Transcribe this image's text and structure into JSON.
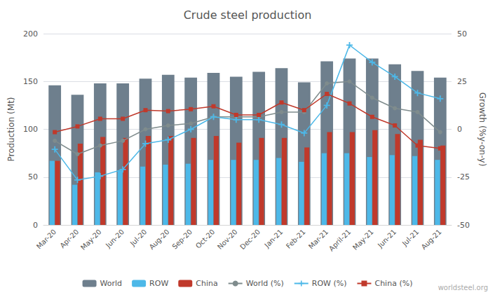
{
  "chart_data": {
    "type": "bar",
    "title": "Crude steel production",
    "categories": [
      "Mar-20",
      "Apr-20",
      "May-20",
      "Jun-20",
      "Jul-20",
      "Aug-20",
      "Sep-20",
      "Oct-20",
      "Nov-20",
      "Dec-20",
      "Jan-21",
      "Feb-21",
      "Mar-21",
      "April-21",
      "May-21",
      "Jun-21",
      "Jul-21",
      "Aug-21"
    ],
    "series": [
      {
        "name": "World",
        "type": "bar",
        "color": "#6e7f8d",
        "values": [
          146,
          136,
          148,
          148,
          153,
          157,
          154,
          159,
          155,
          160,
          164,
          149,
          171,
          174,
          174,
          168,
          161,
          154
        ]
      },
      {
        "name": "ROW",
        "type": "bar",
        "color": "#4db8e8",
        "values": [
          67,
          42,
          55,
          57,
          61,
          63,
          64,
          68,
          68,
          68,
          70,
          66,
          75,
          75,
          71,
          73,
          72,
          68
        ]
      },
      {
        "name": "China",
        "type": "bar",
        "color": "#c0392b",
        "values": [
          67,
          85,
          92,
          91,
          93,
          93,
          91,
          93,
          86,
          91,
          91,
          81,
          97,
          97,
          99,
          95,
          89,
          83
        ]
      },
      {
        "name": "World (%)",
        "type": "line",
        "axis": "y2",
        "marker": "circle",
        "color": "#7f8c8d",
        "values": [
          -6,
          -13,
          -8.5,
          -6,
          0,
          2,
          3,
          6.5,
          6.5,
          6.5,
          9,
          9,
          24,
          25,
          16.5,
          11,
          9,
          -1.5
        ]
      },
      {
        "name": "ROW (%)",
        "type": "line",
        "axis": "y2",
        "marker": "plus",
        "color": "#4db8e8",
        "values": [
          -10.5,
          -26.5,
          -24.5,
          -21,
          -7.5,
          -5.5,
          0,
          6.5,
          5,
          5,
          2.5,
          -2,
          12.5,
          44,
          35,
          27.5,
          19,
          16
        ]
      },
      {
        "name": "China (%)",
        "type": "line",
        "axis": "y2",
        "marker": "square",
        "color": "#c0392b",
        "values": [
          -1.5,
          1.5,
          5.5,
          5.5,
          10,
          9.5,
          10.5,
          12,
          7.5,
          7.5,
          14,
          10,
          18.5,
          13.5,
          6.5,
          2,
          -8.5,
          -10
        ]
      }
    ],
    "ylabel": "Production (Mt)",
    "y2label": "Growth (%y-on-y)",
    "ylim": [
      0,
      200
    ],
    "yticks": [
      0,
      50,
      100,
      150,
      200
    ],
    "y2lim": [
      -50,
      50
    ],
    "y2ticks": [
      -50,
      -25,
      0,
      25,
      50
    ],
    "grid": true,
    "legend": "bottom",
    "annotations": [
      {
        "text": "worldsteel.org"
      }
    ]
  }
}
